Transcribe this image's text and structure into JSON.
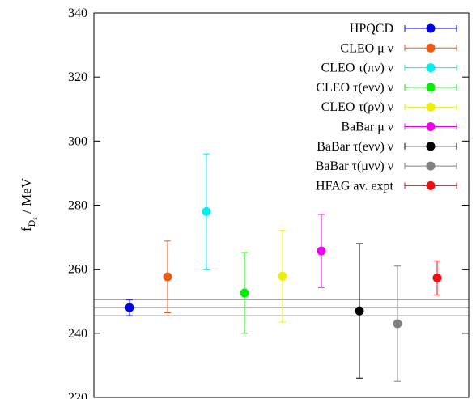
{
  "chart_data": {
    "type": "scatter",
    "ylabel_main": "f",
    "ylabel_sub": "D",
    "ylabel_subsub": "s",
    "ylabel_unit": " / MeV",
    "ylim": [
      220,
      340
    ],
    "yticks": [
      220,
      240,
      260,
      280,
      300,
      320,
      340
    ],
    "ytick_labels": [
      "220",
      "240",
      "260",
      "280",
      "300",
      "320",
      "340"
    ],
    "grid": false,
    "legend_position": "top-right",
    "band": {
      "center": 248,
      "lower": 245.5,
      "upper": 250.5
    },
    "series": [
      {
        "name": "HPQCD",
        "x": 1,
        "y": 248,
        "err_low": 2.5,
        "err_high": 2.5,
        "color": "#0000ee"
      },
      {
        "name": "CLEO μ ν",
        "x": 2,
        "y": 257.6,
        "err_low": 11.2,
        "err_high": 11.2,
        "color": "#ee5a10"
      },
      {
        "name": "CLEO τ(πν) ν",
        "x": 3,
        "y": 278,
        "err_low": 18,
        "err_high": 18,
        "color": "#00eeee"
      },
      {
        "name": "CLEO τ(eνν) ν",
        "x": 4,
        "y": 252.6,
        "err_low": 12.6,
        "err_high": 12.6,
        "color": "#00ee00"
      },
      {
        "name": "CLEO τ(ρν) ν",
        "x": 5,
        "y": 257.8,
        "err_low": 14.3,
        "err_high": 14.3,
        "color": "#eeee00"
      },
      {
        "name": "BaBar μ ν",
        "x": 6,
        "y": 265.7,
        "err_low": 11.4,
        "err_high": 11.4,
        "color": "#ee00ee"
      },
      {
        "name": "BaBar τ(eνν) ν",
        "x": 7,
        "y": 247,
        "err_low": 21,
        "err_high": 21,
        "color": "#000000"
      },
      {
        "name": "BaBar τ(μνν) ν",
        "x": 8,
        "y": 243,
        "err_low": 18,
        "err_high": 18,
        "color": "#808080"
      },
      {
        "name": "HFAG av. expt",
        "x": 9,
        "y": 257.3,
        "err_low": 5.3,
        "err_high": 5.3,
        "color": "#ee1010"
      }
    ]
  }
}
